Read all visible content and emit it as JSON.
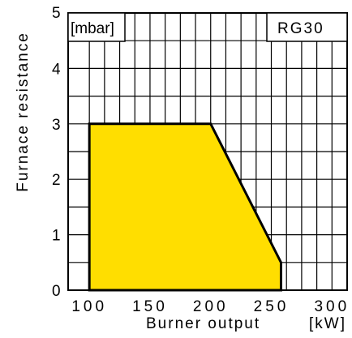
{
  "chart_data": {
    "type": "area",
    "title": "",
    "model": "RG30",
    "unit_label": "[mbar]",
    "ylabel": "Furnace resistance",
    "xlabel": "Burner output",
    "x_unit": "[kW]",
    "xlim": [
      82.5,
      312.5
    ],
    "ylim": [
      0,
      5
    ],
    "x_ticks": [
      100,
      150,
      200,
      250,
      300
    ],
    "y_ticks": [
      0,
      1,
      2,
      3,
      4,
      5
    ],
    "x_tick_labels": [
      "100",
      "150",
      "200",
      "250",
      "300"
    ],
    "y_tick_labels": [
      "0",
      "1",
      "2",
      "3",
      "4",
      "5"
    ],
    "grid": true,
    "fill_color": "#ffde00",
    "line_color": "#000000",
    "x": [
      100,
      100,
      200,
      258,
      258
    ],
    "y": [
      0,
      3,
      3,
      0.5,
      0
    ]
  }
}
